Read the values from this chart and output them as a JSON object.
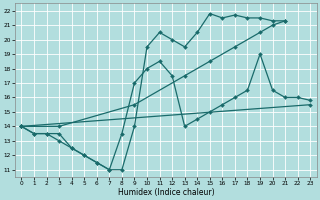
{
  "xlabel": "Humidex (Indice chaleur)",
  "xlim": [
    -0.5,
    23.5
  ],
  "ylim": [
    10.5,
    22.5
  ],
  "yticks": [
    11,
    12,
    13,
    14,
    15,
    16,
    17,
    18,
    19,
    20,
    21,
    22
  ],
  "xticks": [
    0,
    1,
    2,
    3,
    4,
    5,
    6,
    7,
    8,
    9,
    10,
    11,
    12,
    13,
    14,
    15,
    16,
    17,
    18,
    19,
    20,
    21,
    22,
    23
  ],
  "bg_color": "#b2dede",
  "grid_color": "#ffffff",
  "line_color": "#1a6b6b",
  "series": [
    {
      "x": [
        0,
        1,
        2,
        3,
        4,
        5,
        6,
        7,
        8,
        9,
        10,
        11,
        12,
        13,
        14,
        15,
        16,
        17,
        18,
        19,
        20,
        21
      ],
      "y": [
        14,
        13.5,
        13.5,
        13.5,
        12.5,
        12.0,
        11.5,
        11.0,
        11.0,
        14.0,
        19.5,
        20.5,
        20.0,
        19.5,
        20.5,
        21.8,
        21.5,
        21.7,
        21.5,
        21.5,
        21.3,
        21.3
      ]
    },
    {
      "x": [
        0,
        3,
        9,
        13,
        15,
        17,
        19,
        20,
        21
      ],
      "y": [
        14,
        14.0,
        15.5,
        17.5,
        18.5,
        19.5,
        20.5,
        21.0,
        21.3
      ]
    },
    {
      "x": [
        0,
        23
      ],
      "y": [
        14.0,
        15.5
      ]
    },
    {
      "x": [
        0,
        1,
        2,
        3,
        4,
        5,
        6,
        7,
        8,
        9,
        10,
        11,
        12,
        13,
        14,
        15,
        16,
        17,
        18,
        19,
        20,
        21,
        22,
        23
      ],
      "y": [
        14,
        13.5,
        13.5,
        13.0,
        12.5,
        12.0,
        11.5,
        11.0,
        13.5,
        17.0,
        18.0,
        18.5,
        17.5,
        14.0,
        14.5,
        15.0,
        15.5,
        16.0,
        16.5,
        19.0,
        16.5,
        16.0,
        16.0,
        15.8
      ]
    }
  ]
}
